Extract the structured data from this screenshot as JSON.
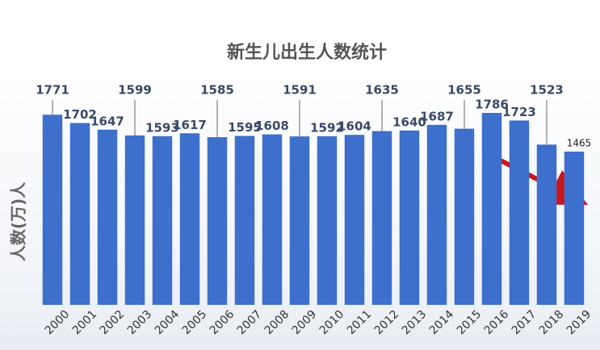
{
  "chart_data": {
    "type": "bar",
    "title": "新生儿出生人数统计",
    "y_label": "人数(万)人",
    "categories": [
      "2000",
      "2001",
      "2002",
      "2003",
      "2004",
      "2005",
      "2006",
      "2007",
      "2008",
      "2009",
      "2010",
      "2011",
      "2012",
      "2013",
      "2014",
      "2015",
      "2016",
      "2017",
      "2018",
      "2019"
    ],
    "values": [
      1771,
      1702,
      1647,
      1599,
      1593,
      1617,
      1585,
      1595,
      1608,
      1591,
      1592,
      1604,
      1635,
      1640,
      1687,
      1655,
      1786,
      1723,
      1523,
      1465
    ],
    "color": "#3d6fcc"
  }
}
